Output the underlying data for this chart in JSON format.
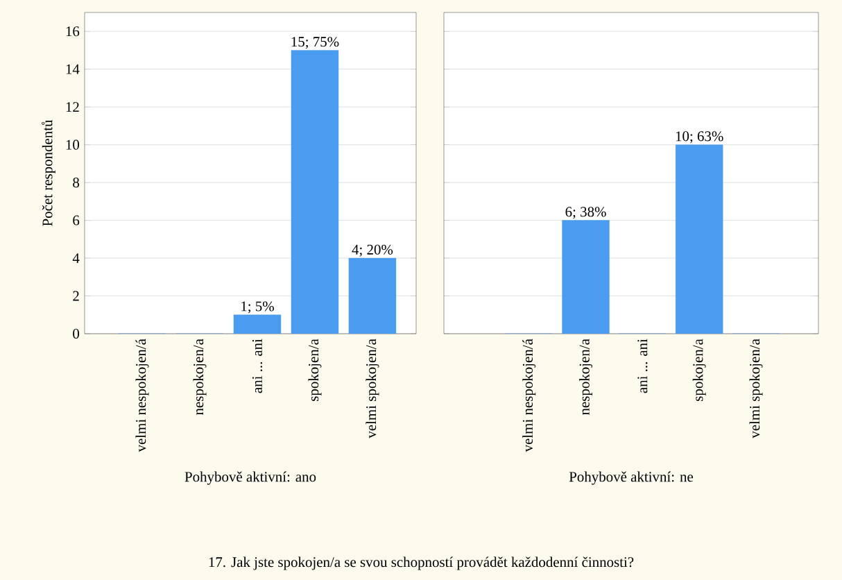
{
  "chart_data": [
    {
      "type": "bar",
      "xlabel": "Pohybově aktivní: ano",
      "ylabel": "Počet respondentů",
      "categories": [
        "velmi nespokojen/á",
        "nespokojen/a",
        "ani ... ani",
        "spokojen/a",
        "velmi spokojen/a"
      ],
      "values": [
        0,
        0,
        1,
        15,
        4
      ],
      "value_labels": [
        null,
        null,
        "1; 5%",
        "15; 75%",
        "4; 20%"
      ],
      "color": "#4a9cf0",
      "ylim": [
        0,
        17
      ],
      "yticks": [
        0,
        2,
        4,
        6,
        8,
        10,
        12,
        14,
        16
      ],
      "grid": "y",
      "annotations": [
        "17. Jak jste spokojen/a se svou schopností provádět každodenní činnosti?"
      ]
    },
    {
      "type": "bar",
      "xlabel": "Pohybově aktivní: ne",
      "categories": [
        "velmi nespokojen/á",
        "nespokojen/a",
        "ani ... ani",
        "spokojen/a",
        "velmi spokojen/a"
      ],
      "values": [
        0,
        6,
        0,
        10,
        0
      ],
      "value_labels": [
        null,
        "6; 38%",
        null,
        "10; 63%",
        null
      ],
      "color": "#4a9cf0",
      "ylim": [
        0,
        17
      ],
      "yticks": [
        0,
        2,
        4,
        6,
        8,
        10,
        12,
        14,
        16
      ],
      "grid": "y",
      "tick_labels": "x"
    }
  ]
}
